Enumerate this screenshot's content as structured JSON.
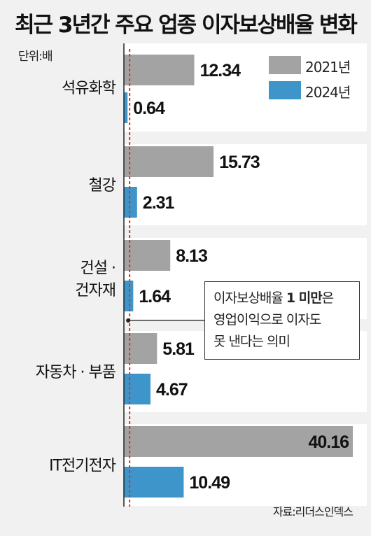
{
  "title": "최근 3년간 주요 업종 이자보상배율 변화",
  "unit": "단위:배",
  "source": "자료:리더스인덱스",
  "annotation": {
    "line1_prefix": "이자보상배율 ",
    "line1_bold": "1 미만",
    "line1_suffix": "은",
    "line2": "영업이익으로 이자도",
    "line3": "못 낸다는 의미"
  },
  "colors": {
    "series_2021": "#a3a3a3",
    "series_2024": "#3d95c9",
    "reference_line": "#e03030",
    "band": "#ffffff"
  },
  "chart_data": {
    "type": "bar",
    "orientation": "horizontal",
    "categories": [
      [
        "석유화학"
      ],
      [
        "철강"
      ],
      [
        "건설 ·",
        "건자재"
      ],
      [
        "자동차 · 부품"
      ],
      [
        "IT전기전자"
      ]
    ],
    "series": [
      {
        "name": "2021년",
        "values": [
          12.34,
          15.73,
          8.13,
          5.81,
          40.16
        ]
      },
      {
        "name": "2024년",
        "values": [
          0.64,
          2.31,
          1.64,
          4.67,
          10.49
        ]
      }
    ],
    "value_labels": {
      "2021년": [
        "12.34",
        "15.73",
        "8.13",
        "5.81",
        "40.16"
      ],
      "2024년": [
        "0.64",
        "2.31",
        "1.64",
        "4.67",
        "10.49"
      ]
    },
    "reference_line": 1,
    "xlim": [
      0,
      40.16
    ],
    "legend_position": "top-right"
  }
}
